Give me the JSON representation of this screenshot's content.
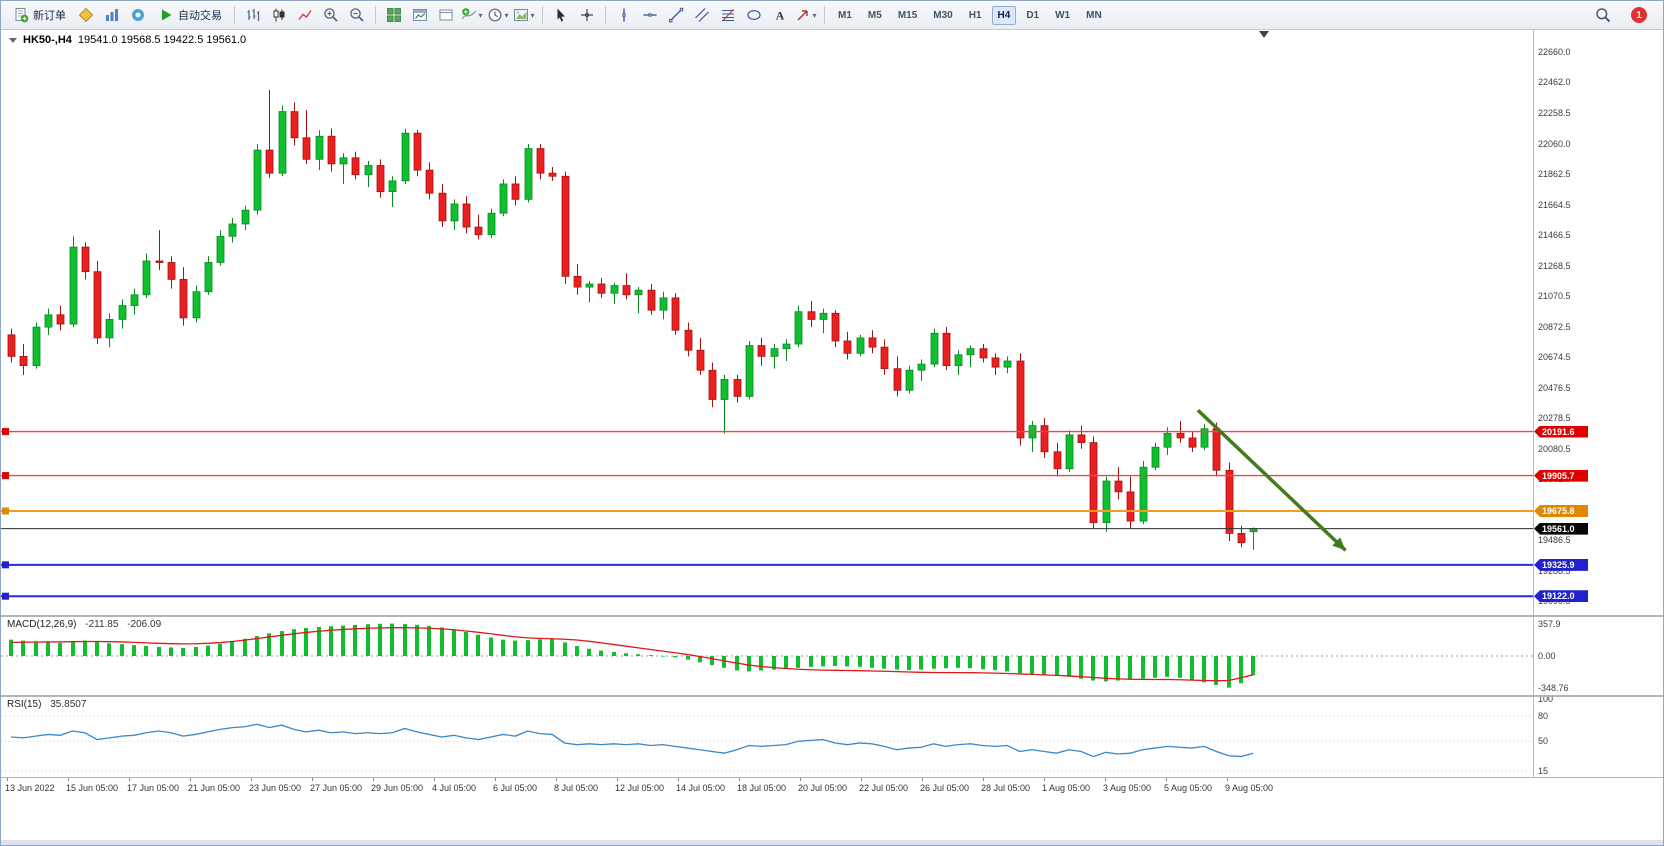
{
  "window": {
    "notification_count": "1"
  },
  "toolbar": {
    "items": [
      {
        "kind": "button",
        "name": "new-order-button",
        "icon": "new-order-icon",
        "label": "新订单"
      },
      {
        "kind": "icon",
        "name": "market-depth-button",
        "icon": "market-depth-icon"
      },
      {
        "kind": "icon",
        "name": "charts-button",
        "icon": "charts-icon"
      },
      {
        "kind": "icon",
        "name": "community-button",
        "icon": "community-icon"
      },
      {
        "kind": "button",
        "name": "algo-trading-button",
        "icon": "play-icon",
        "label": "自动交易"
      },
      {
        "kind": "sep"
      },
      {
        "kind": "icon",
        "name": "bar-chart-button",
        "icon": "bar-chart-icon"
      },
      {
        "kind": "icon",
        "name": "candle-chart-button",
        "icon": "candle-chart-icon"
      },
      {
        "kind": "icon",
        "name": "line-chart-button",
        "icon": "line-chart-icon"
      },
      {
        "kind": "icon",
        "name": "zoom-in-button",
        "icon": "zoom-in-icon"
      },
      {
        "kind": "icon",
        "name": "zoom-out-button",
        "icon": "zoom-out-icon"
      },
      {
        "kind": "sep"
      },
      {
        "kind": "icon",
        "name": "tile-windows-button",
        "icon": "tile-windows-icon"
      },
      {
        "kind": "icon",
        "name": "new-chart-button",
        "icon": "window-chart-icon"
      },
      {
        "kind": "icon",
        "name": "profile-button",
        "icon": "window-icon"
      },
      {
        "kind": "icon",
        "name": "add-indicator-button",
        "icon": "indicator-add-icon",
        "dropdown": true
      },
      {
        "kind": "icon",
        "name": "period-button",
        "icon": "period-icon",
        "dropdown": true
      },
      {
        "kind": "icon",
        "name": "template-button",
        "icon": "template-icon",
        "dropdown": true
      },
      {
        "kind": "sep"
      },
      {
        "kind": "icon",
        "name": "cursor-button",
        "icon": "cursor-icon"
      },
      {
        "kind": "icon",
        "name": "crosshair-button",
        "icon": "crosshair-icon"
      },
      {
        "kind": "sep"
      },
      {
        "kind": "icon",
        "name": "vertical-line-button",
        "icon": "vline-icon"
      },
      {
        "kind": "icon",
        "name": "horizontal-line-button",
        "icon": "hline-icon"
      },
      {
        "kind": "icon",
        "name": "trendline-button",
        "icon": "trendline-icon"
      },
      {
        "kind": "icon",
        "name": "channel-button",
        "icon": "channel-icon"
      },
      {
        "kind": "icon",
        "name": "fibonacci-button",
        "icon": "fibonacci-icon"
      },
      {
        "kind": "icon",
        "name": "shapes-button",
        "icon": "shapes-icon"
      },
      {
        "kind": "icon",
        "name": "text-button",
        "icon": "text-icon"
      },
      {
        "kind": "icon",
        "name": "arrows-button",
        "icon": "arrows-icon",
        "dropdown": true
      },
      {
        "kind": "sep"
      },
      {
        "kind": "tf",
        "name": "timeframe-m1-button",
        "label": "M1"
      },
      {
        "kind": "tf",
        "name": "timeframe-m5-button",
        "label": "M5"
      },
      {
        "kind": "tf",
        "name": "timeframe-m15-button",
        "label": "M15"
      },
      {
        "kind": "tf",
        "name": "timeframe-m30-button",
        "label": "M30"
      },
      {
        "kind": "tf",
        "name": "timeframe-h1-button",
        "label": "H1"
      },
      {
        "kind": "tf",
        "name": "timeframe-h4-button",
        "label": "H4",
        "active": true
      },
      {
        "kind": "tf",
        "name": "timeframe-d1-button",
        "label": "D1"
      },
      {
        "kind": "tf",
        "name": "timeframe-w1-button",
        "label": "W1"
      },
      {
        "kind": "tf",
        "name": "timeframe-mn-button",
        "label": "MN"
      },
      {
        "kind": "spacer"
      },
      {
        "kind": "icon",
        "name": "search-button",
        "icon": "search-icon"
      },
      {
        "kind": "badge",
        "name": "notification-badge",
        "label": "1"
      }
    ]
  },
  "chart_data": {
    "type": "candlestick",
    "symbol": "HK50-",
    "period": "H4",
    "title_display": "HK50-,H4",
    "ohlc_display": "19541.0 19568.5 19422.5 19561.0",
    "up_color": "#0fbf2f",
    "up_border": "#0a8a22",
    "down_color": "#ea1f1f",
    "down_border": "#a61212",
    "price": {
      "ylim": [
        19000,
        22800
      ],
      "axis_ticks": [
        "22660.0",
        "22462.0",
        "22258.5",
        "22060.0",
        "21862.5",
        "21664.5",
        "21466.5",
        "21268.5",
        "21070.5",
        "20872.5",
        "20674.5",
        "20476.5",
        "20278.5",
        "20080.5",
        "19882.5",
        "19684.5",
        "19486.5",
        "19288.5",
        "19090.5"
      ]
    },
    "candles": [
      [
        20820,
        20860,
        20640,
        20680
      ],
      [
        20680,
        20760,
        20560,
        20620
      ],
      [
        20620,
        20900,
        20600,
        20870
      ],
      [
        20870,
        20990,
        20820,
        20950
      ],
      [
        20950,
        21010,
        20850,
        20890
      ],
      [
        20890,
        21460,
        20870,
        21390
      ],
      [
        21390,
        21420,
        21180,
        21230
      ],
      [
        21230,
        21300,
        20760,
        20800
      ],
      [
        20800,
        20960,
        20740,
        20920
      ],
      [
        20920,
        21050,
        20860,
        21010
      ],
      [
        21010,
        21120,
        20950,
        21080
      ],
      [
        21080,
        21350,
        21060,
        21300
      ],
      [
        21300,
        21500,
        21240,
        21290
      ],
      [
        21290,
        21330,
        21120,
        21180
      ],
      [
        21180,
        21260,
        20880,
        20930
      ],
      [
        20930,
        21140,
        20900,
        21100
      ],
      [
        21100,
        21330,
        21080,
        21290
      ],
      [
        21290,
        21500,
        21270,
        21460
      ],
      [
        21460,
        21580,
        21420,
        21540
      ],
      [
        21540,
        21660,
        21500,
        21630
      ],
      [
        21630,
        22060,
        21600,
        22020
      ],
      [
        22020,
        22410,
        21840,
        21870
      ],
      [
        21870,
        22310,
        21850,
        22270
      ],
      [
        22270,
        22330,
        22050,
        22100
      ],
      [
        22100,
        22280,
        21930,
        21960
      ],
      [
        21960,
        22150,
        21890,
        22110
      ],
      [
        22110,
        22160,
        21880,
        21930
      ],
      [
        21930,
        22000,
        21800,
        21970
      ],
      [
        21970,
        22010,
        21830,
        21860
      ],
      [
        21860,
        21950,
        21780,
        21920
      ],
      [
        21920,
        21960,
        21710,
        21750
      ],
      [
        21750,
        21850,
        21650,
        21820
      ],
      [
        21820,
        22160,
        21800,
        22130
      ],
      [
        22130,
        22150,
        21850,
        21890
      ],
      [
        21890,
        21940,
        21700,
        21740
      ],
      [
        21740,
        21800,
        21520,
        21560
      ],
      [
        21560,
        21700,
        21500,
        21670
      ],
      [
        21670,
        21720,
        21480,
        21520
      ],
      [
        21520,
        21600,
        21440,
        21470
      ],
      [
        21470,
        21640,
        21450,
        21610
      ],
      [
        21610,
        21830,
        21590,
        21800
      ],
      [
        21800,
        21850,
        21660,
        21700
      ],
      [
        21700,
        22060,
        21680,
        22030
      ],
      [
        22030,
        22060,
        21830,
        21870
      ],
      [
        21870,
        21910,
        21820,
        21850
      ],
      [
        21850,
        21880,
        21150,
        21200
      ],
      [
        21200,
        21280,
        21080,
        21130
      ],
      [
        21130,
        21170,
        21030,
        21150
      ],
      [
        21150,
        21190,
        21060,
        21090
      ],
      [
        21090,
        21160,
        21020,
        21140
      ],
      [
        21140,
        21220,
        21050,
        21080
      ],
      [
        21080,
        21130,
        20960,
        21110
      ],
      [
        21110,
        21150,
        20950,
        20980
      ],
      [
        20980,
        21100,
        20920,
        21060
      ],
      [
        21060,
        21090,
        20820,
        20850
      ],
      [
        20850,
        20900,
        20680,
        20720
      ],
      [
        20720,
        20800,
        20560,
        20590
      ],
      [
        20590,
        20640,
        20350,
        20400
      ],
      [
        20400,
        20560,
        20180,
        20530
      ],
      [
        20530,
        20560,
        20380,
        20420
      ],
      [
        20420,
        20780,
        20400,
        20750
      ],
      [
        20750,
        20800,
        20620,
        20680
      ],
      [
        20680,
        20760,
        20600,
        20730
      ],
      [
        20730,
        20790,
        20650,
        20760
      ],
      [
        20760,
        21010,
        20740,
        20970
      ],
      [
        20970,
        21040,
        20870,
        20920
      ],
      [
        20920,
        20990,
        20830,
        20960
      ],
      [
        20960,
        20980,
        20740,
        20780
      ],
      [
        20780,
        20840,
        20660,
        20700
      ],
      [
        20700,
        20820,
        20680,
        20800
      ],
      [
        20800,
        20850,
        20700,
        20740
      ],
      [
        20740,
        20790,
        20560,
        20600
      ],
      [
        20600,
        20680,
        20420,
        20460
      ],
      [
        20460,
        20620,
        20440,
        20590
      ],
      [
        20590,
        20660,
        20520,
        20630
      ],
      [
        20630,
        20860,
        20610,
        20830
      ],
      [
        20830,
        20870,
        20590,
        20620
      ],
      [
        20620,
        20720,
        20560,
        20690
      ],
      [
        20690,
        20750,
        20610,
        20730
      ],
      [
        20730,
        20760,
        20640,
        20670
      ],
      [
        20670,
        20700,
        20560,
        20610
      ],
      [
        20610,
        20680,
        20570,
        20650
      ],
      [
        20650,
        20700,
        20100,
        20150
      ],
      [
        20150,
        20260,
        20060,
        20230
      ],
      [
        20230,
        20280,
        20020,
        20060
      ],
      [
        20060,
        20120,
        19900,
        19950
      ],
      [
        19950,
        20200,
        19930,
        20170
      ],
      [
        20170,
        20230,
        20080,
        20120
      ],
      [
        20120,
        20160,
        19560,
        19600
      ],
      [
        19600,
        19900,
        19540,
        19870
      ],
      [
        19870,
        19960,
        19750,
        19800
      ],
      [
        19800,
        19900,
        19560,
        19610
      ],
      [
        19610,
        20000,
        19590,
        19960
      ],
      [
        19960,
        20120,
        19940,
        20090
      ],
      [
        20090,
        20220,
        20040,
        20180
      ],
      [
        20180,
        20260,
        20120,
        20150
      ],
      [
        20150,
        20190,
        20060,
        20090
      ],
      [
        20090,
        20240,
        20070,
        20210
      ],
      [
        20210,
        20250,
        19900,
        19940
      ],
      [
        19940,
        19990,
        19480,
        19530
      ],
      [
        19530,
        19580,
        19440,
        19470
      ],
      [
        19541,
        19568.5,
        19422.5,
        19561
      ]
    ],
    "levels": [
      {
        "label": "20191.6",
        "price": 20191.6,
        "line_color": "#f04545",
        "box_color": "#e00000",
        "width": 1.3
      },
      {
        "label": "19905.7",
        "price": 19905.7,
        "line_color": "#f04545",
        "box_color": "#e00000",
        "width": 1.3
      },
      {
        "label": "19675.8",
        "price": 19675.8,
        "line_color": "#f59b22",
        "box_color": "#e08900",
        "width": 2
      },
      {
        "label": "19561.0",
        "price": 19561.0,
        "line_color": "#2e2e2e",
        "box_color": "#080808",
        "width": 1,
        "current": true
      },
      {
        "label": "19325.9",
        "price": 19325.9,
        "line_color": "#2b2bd5",
        "box_color": "#2222cc",
        "width": 2
      },
      {
        "label": "19122.0",
        "price": 19122.0,
        "line_color": "#2b2bd5",
        "box_color": "#2222cc",
        "width": 2
      }
    ],
    "annotations": [
      {
        "type": "arrow",
        "from": {
          "index": 96.5,
          "price": 20330
        },
        "to": {
          "index": 108.5,
          "price": 19420
        },
        "color": "#3f7d1c"
      }
    ],
    "macd": {
      "label": "MACD(12,26,9)",
      "value_main": "-211.85",
      "value_signal": "-206.09",
      "ylim": [
        -430,
        430
      ],
      "axis_ticks": [
        "357.9",
        "0.00",
        "-348.76"
      ],
      "hist_color": "#0fbf2f",
      "signal_color": "#e01818",
      "histogram": [
        180,
        170,
        160,
        150,
        145,
        160,
        170,
        155,
        140,
        130,
        120,
        110,
        100,
        95,
        90,
        100,
        115,
        135,
        160,
        190,
        220,
        250,
        275,
        295,
        310,
        320,
        328,
        335,
        342,
        350,
        355,
        357.9,
        352,
        344,
        332,
        315,
        292,
        265,
        235,
        205,
        180,
        170,
        175,
        185,
        190,
        150,
        110,
        80,
        60,
        45,
        30,
        20,
        10,
        0,
        -15,
        -40,
        -70,
        -100,
        -130,
        -160,
        -170,
        -160,
        -150,
        -140,
        -130,
        -120,
        -115,
        -110,
        -115,
        -120,
        -130,
        -140,
        -150,
        -155,
        -150,
        -140,
        -135,
        -130,
        -135,
        -145,
        -155,
        -170,
        -190,
        -200,
        -210,
        -220,
        -230,
        -250,
        -270,
        -280,
        -270,
        -260,
        -250,
        -240,
        -230,
        -240,
        -260,
        -290,
        -320,
        -348.76,
        -300,
        -211.85
      ],
      "signal": [
        150,
        152,
        154,
        155,
        156,
        158,
        160,
        160,
        158,
        155,
        150,
        145,
        140,
        136,
        134,
        135,
        140,
        148,
        160,
        175,
        192,
        210,
        228,
        245,
        260,
        273,
        284,
        293,
        300,
        306,
        310,
        312,
        312,
        310,
        306,
        299,
        289,
        276,
        261,
        245,
        228,
        212,
        200,
        194,
        190,
        185,
        176,
        162,
        145,
        126,
        108,
        90,
        72,
        54,
        36,
        16,
        -6,
        -30,
        -54,
        -78,
        -100,
        -116,
        -128,
        -138,
        -146,
        -152,
        -156,
        -158,
        -160,
        -162,
        -165,
        -168,
        -172,
        -176,
        -180,
        -182,
        -183,
        -183,
        -184,
        -186,
        -189,
        -193,
        -198,
        -203,
        -208,
        -214,
        -220,
        -228,
        -237,
        -246,
        -252,
        -256,
        -258,
        -259,
        -259,
        -262,
        -266,
        -270,
        -272,
        -270,
        -240,
        -206.09
      ]
    },
    "rsi": {
      "label": "RSI(15)",
      "value": "35.8507",
      "ylim": [
        8,
        102
      ],
      "axis_ticks": [
        "100",
        "80",
        "50",
        "15"
      ],
      "levels": [
        80,
        50,
        15
      ],
      "color": "#3b87c8",
      "values": [
        55,
        54,
        56,
        58,
        57,
        62,
        60,
        52,
        54,
        56,
        57,
        60,
        62,
        60,
        56,
        58,
        61,
        64,
        66,
        67,
        70,
        66,
        69,
        64,
        61,
        63,
        60,
        61,
        59,
        60,
        59,
        60,
        65,
        61,
        58,
        55,
        57,
        54,
        52,
        55,
        58,
        56,
        62,
        59,
        58,
        48,
        46,
        47,
        46,
        47,
        46,
        47,
        45,
        46,
        44,
        42,
        40,
        38,
        36,
        40,
        45,
        44,
        45,
        46,
        50,
        51,
        52,
        48,
        46,
        48,
        47,
        44,
        40,
        42,
        43,
        47,
        44,
        46,
        47,
        45,
        44,
        45,
        38,
        40,
        38,
        36,
        40,
        38,
        32,
        37,
        35,
        36,
        40,
        42,
        44,
        43,
        42,
        44,
        38,
        33,
        32,
        35.85
      ]
    },
    "time_axis": {
      "labels": [
        "13 Jun 2022",
        "15 Jun 05:00",
        "17 Jun 05:00",
        "21 Jun 05:00",
        "23 Jun 05:00",
        "27 Jun 05:00",
        "29 Jun 05:00",
        "4 Jul 05:00",
        "6 Jul 05:00",
        "8 Jul 05:00",
        "12 Jul 05:00",
        "14 Jul 05:00",
        "18 Jul 05:00",
        "20 Jul 05:00",
        "22 Jul 05:00",
        "26 Jul 05:00",
        "28 Jul 05:00",
        "1 Aug 05:00",
        "3 Aug 05:00",
        "5 Aug 05:00",
        "9 Aug 05:00"
      ]
    }
  }
}
